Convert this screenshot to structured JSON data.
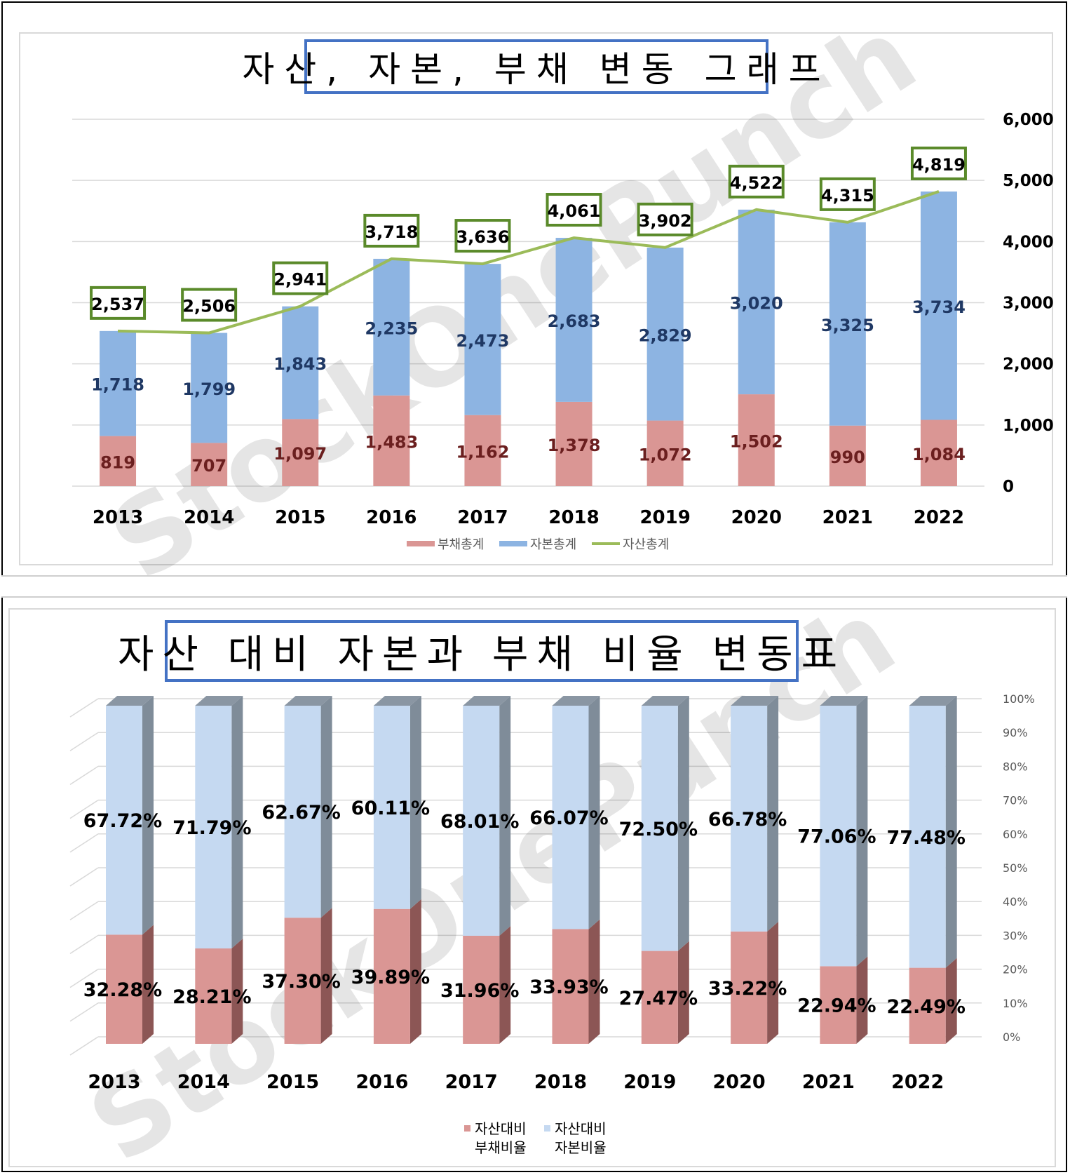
{
  "title1": "자산, 자본, 부채 변동 그래프",
  "title2": "자산 대비 자본과 부채 비율 변동표",
  "watermark": "StockOnePunch",
  "colors": {
    "liabilities": "#da9694",
    "equity": "#8db4e2",
    "assets_line": "#9bbb59",
    "equity_light": "#c5d9f1",
    "liab_label": "#6b1f1f",
    "equity_label": "#1f3864",
    "box_border": "#5a8a2a"
  },
  "chart_data": [
    {
      "type": "bar",
      "stacked": true,
      "title": "자산, 자본, 부채 변동 그래프",
      "categories": [
        "2013",
        "2014",
        "2015",
        "2016",
        "2017",
        "2018",
        "2019",
        "2020",
        "2021",
        "2022"
      ],
      "series": [
        {
          "name": "부채총계",
          "kind": "bar",
          "values": [
            819,
            707,
            1097,
            1483,
            1162,
            1378,
            1072,
            1502,
            990,
            1084
          ]
        },
        {
          "name": "자본총계",
          "kind": "bar",
          "values": [
            1718,
            1799,
            1843,
            2235,
            2473,
            2683,
            2829,
            3020,
            3325,
            3734
          ]
        },
        {
          "name": "자산총계",
          "kind": "line",
          "values": [
            2537,
            2506,
            2941,
            3718,
            3636,
            4061,
            3902,
            4522,
            4315,
            4819
          ]
        }
      ],
      "value_labels": {
        "liabilities": [
          "819",
          "707",
          "1,097",
          "1,483",
          "1,162",
          "1,378",
          "1,072",
          "1,502",
          "990",
          "1,084"
        ],
        "equity": [
          "1,718",
          "1,799",
          "1,843",
          "2,235",
          "2,473",
          "2,683",
          "2,829",
          "3,020",
          "3,325",
          "3,734"
        ],
        "assets": [
          "2,537",
          "2,506",
          "2,941",
          "3,718",
          "3,636",
          "4,061",
          "3,902",
          "4,522",
          "4,315",
          "4,819"
        ]
      },
      "y_ticks": [
        "0",
        "1,000",
        "2,000",
        "3,000",
        "4,000",
        "5,000",
        "6,000"
      ],
      "ylim": [
        0,
        6000
      ],
      "grid": true,
      "legend": [
        "부채총계",
        "자본총계",
        "자산총계"
      ],
      "legend_position": "bottom"
    },
    {
      "type": "bar",
      "stacked": true,
      "percent": true,
      "style": "3d",
      "title": "자산 대비 자본과 부채 비율 변동표",
      "categories": [
        "2013",
        "2014",
        "2015",
        "2016",
        "2017",
        "2018",
        "2019",
        "2020",
        "2021",
        "2022"
      ],
      "series": [
        {
          "name": "자산대비 부채비율",
          "values": [
            32.28,
            28.21,
            37.3,
            39.89,
            31.96,
            33.93,
            27.47,
            33.22,
            22.94,
            22.49
          ]
        },
        {
          "name": "자산대비 자본비율",
          "values": [
            67.72,
            71.79,
            62.67,
            60.11,
            68.01,
            66.07,
            72.5,
            66.78,
            77.06,
            77.48
          ]
        }
      ],
      "value_labels": {
        "liabilities": [
          "32.28%",
          "28.21%",
          "37.30%",
          "39.89%",
          "31.96%",
          "33.93%",
          "27.47%",
          "33.22%",
          "22.94%",
          "22.49%"
        ],
        "equity": [
          "67.72%",
          "71.79%",
          "62.67%",
          "60.11%",
          "68.01%",
          "66.07%",
          "72.50%",
          "66.78%",
          "77.06%",
          "77.48%"
        ]
      },
      "y_ticks": [
        "0%",
        "10%",
        "20%",
        "30%",
        "40%",
        "50%",
        "60%",
        "70%",
        "80%",
        "90%",
        "100%"
      ],
      "ylim": [
        0,
        100
      ],
      "grid": true,
      "legend": [
        [
          "자산대비",
          "부채비율"
        ],
        [
          "자산대비",
          "자본비율"
        ]
      ],
      "legend_position": "bottom"
    }
  ]
}
